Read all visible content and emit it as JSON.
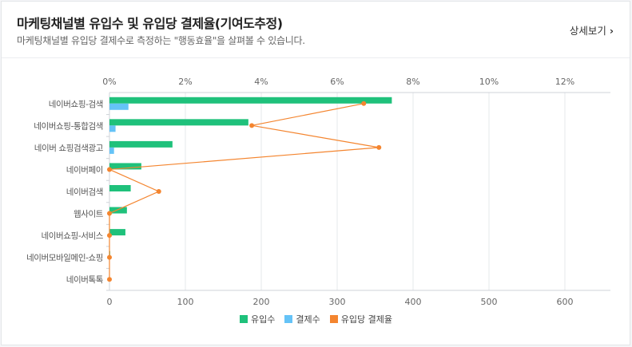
{
  "header": {
    "title": "마케팅채널별 유입수 및 유입당 결제율(기여도추정)",
    "subtitle": "마케팅채널별 유입당 결제수로 측정하는 \"행동효율\"을 살펴볼 수 있습니다.",
    "more_label": "상세보기"
  },
  "colors": {
    "visits": "#1fc17b",
    "payments": "#65c3f7",
    "rate": "#f4852f"
  },
  "chart_data": {
    "type": "bar",
    "orientation": "horizontal",
    "categories": [
      "네이버쇼핑-검색",
      "네이버쇼핑-통합검색",
      "네이버 쇼핑검색광고",
      "네이버페이",
      "네이버검색",
      "웹사이트",
      "네이버쇼핑-서비스",
      "네이버모바일메인-쇼핑",
      "네이버톡톡"
    ],
    "series": [
      {
        "name": "유입수",
        "type": "bar",
        "axis": "bottom",
        "values": [
          372,
          183,
          83,
          42,
          28,
          23,
          21,
          1,
          0
        ]
      },
      {
        "name": "결제수",
        "type": "bar",
        "axis": "bottom",
        "values": [
          25,
          8,
          6,
          0,
          0,
          0,
          0,
          0,
          0
        ]
      },
      {
        "name": "유입당 결제율",
        "type": "line",
        "axis": "top",
        "values": [
          6.7,
          3.75,
          7.1,
          0.0,
          1.3,
          0.0,
          0.0,
          0.0,
          0.0
        ]
      }
    ],
    "x_bottom": {
      "ticks": [
        0,
        100,
        200,
        300,
        400,
        500,
        600
      ],
      "range": [
        0,
        660
      ]
    },
    "x_top": {
      "ticks": [
        "0%",
        "2%",
        "4%",
        "6%",
        "8%",
        "10%",
        "12%"
      ],
      "range": [
        0,
        13.2
      ]
    },
    "grid": true,
    "legend_position": "bottom"
  }
}
